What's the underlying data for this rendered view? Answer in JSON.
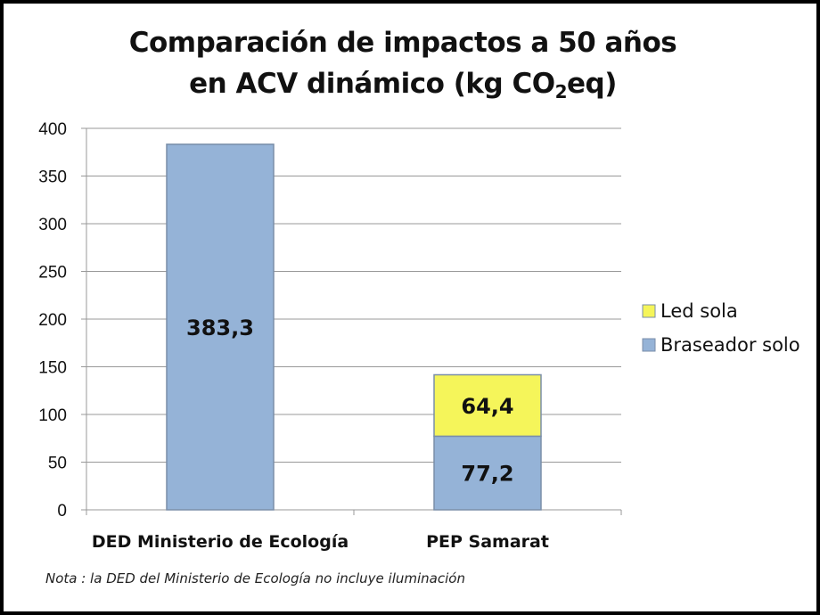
{
  "chart_data": {
    "type": "bar",
    "stacked": true,
    "title_line1": "Comparación de impactos a 50 años",
    "title_line2_pre": "en ACV dinámico (kg CO",
    "title_line2_sub": "2",
    "title_line2_post": "eq)",
    "categories": [
      "DED Ministerio de Ecología",
      "PEP Samarat"
    ],
    "series": [
      {
        "name": "Braseador solo",
        "color": "#95B3D7",
        "values": [
          383.3,
          77.2
        ],
        "labels": [
          "383,3",
          "77,2"
        ]
      },
      {
        "name": "Led sola",
        "color": "#F5F55A",
        "values": [
          0,
          64.4
        ],
        "labels": [
          "",
          "64,4"
        ]
      }
    ],
    "ylim": [
      0,
      400
    ],
    "yticks": [
      0,
      50,
      100,
      150,
      200,
      250,
      300,
      350,
      400
    ],
    "grid": true,
    "legend_position": "right",
    "legend": [
      "Led sola",
      "Braseador solo"
    ]
  },
  "note": "Nota : la DED del Ministerio de Ecología no incluye iluminación"
}
